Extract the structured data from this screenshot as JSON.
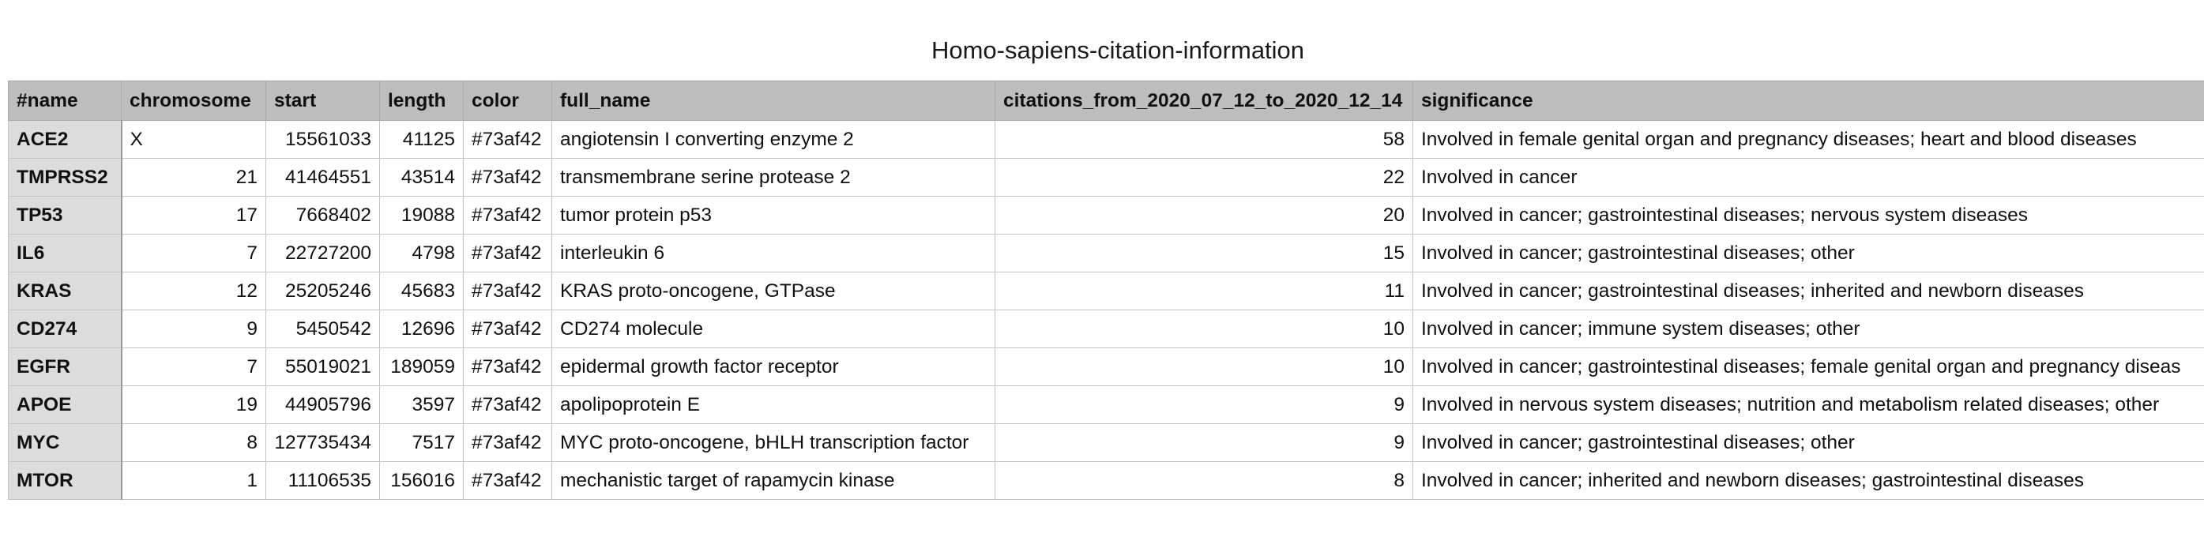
{
  "title": "Homo-sapiens-citation-information",
  "columns": [
    "#name",
    "chromosome",
    "start",
    "length",
    "color",
    "full_name",
    "citations_from_2020_07_12_to_2020_12_14",
    "significance"
  ],
  "rows": [
    {
      "name": "ACE2",
      "chromosome": "X",
      "start": "15561033",
      "length": "41125",
      "color": "#73af42",
      "full_name": "angiotensin I converting enzyme 2",
      "citations": "58",
      "significance": "Involved in female genital organ and pregnancy diseases; heart and blood diseases"
    },
    {
      "name": "TMPRSS2",
      "chromosome": "21",
      "start": "41464551",
      "length": "43514",
      "color": "#73af42",
      "full_name": "transmembrane serine protease 2",
      "citations": "22",
      "significance": "Involved in cancer"
    },
    {
      "name": "TP53",
      "chromosome": "17",
      "start": "7668402",
      "length": "19088",
      "color": "#73af42",
      "full_name": "tumor protein p53",
      "citations": "20",
      "significance": "Involved in cancer; gastrointestinal diseases; nervous system diseases"
    },
    {
      "name": "IL6",
      "chromosome": "7",
      "start": "22727200",
      "length": "4798",
      "color": "#73af42",
      "full_name": "interleukin 6",
      "citations": "15",
      "significance": "Involved in cancer; gastrointestinal diseases; other"
    },
    {
      "name": "KRAS",
      "chromosome": "12",
      "start": "25205246",
      "length": "45683",
      "color": "#73af42",
      "full_name": "KRAS proto-oncogene, GTPase",
      "citations": "11",
      "significance": "Involved in cancer; gastrointestinal diseases; inherited and newborn diseases"
    },
    {
      "name": "CD274",
      "chromosome": "9",
      "start": "5450542",
      "length": "12696",
      "color": "#73af42",
      "full_name": "CD274 molecule",
      "citations": "10",
      "significance": "Involved in cancer; immune system diseases; other"
    },
    {
      "name": "EGFR",
      "chromosome": "7",
      "start": "55019021",
      "length": "189059",
      "color": "#73af42",
      "full_name": "epidermal growth factor receptor",
      "citations": "10",
      "significance": "Involved in cancer; gastrointestinal diseases; female genital organ and pregnancy diseas"
    },
    {
      "name": "APOE",
      "chromosome": "19",
      "start": "44905796",
      "length": "3597",
      "color": "#73af42",
      "full_name": "apolipoprotein E",
      "citations": "9",
      "significance": "Involved in nervous system diseases; nutrition and metabolism related diseases; other"
    },
    {
      "name": "MYC",
      "chromosome": "8",
      "start": "127735434",
      "length": "7517",
      "color": "#73af42",
      "full_name": "MYC proto-oncogene, bHLH transcription factor",
      "citations": "9",
      "significance": "Involved in cancer; gastrointestinal diseases; other"
    },
    {
      "name": "MTOR",
      "chromosome": "1",
      "start": "11106535",
      "length": "156016",
      "color": "#73af42",
      "full_name": "mechanistic target of rapamycin kinase",
      "citations": "8",
      "significance": "Involved in cancer; inherited and newborn diseases; gastrointestinal diseases"
    }
  ]
}
